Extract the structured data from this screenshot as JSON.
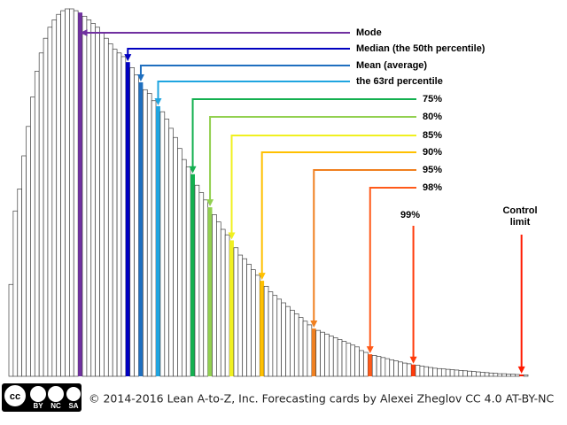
{
  "chart_data": {
    "type": "bar",
    "values": [
      25,
      45,
      51,
      60,
      68,
      76,
      83,
      88,
      92,
      95,
      97,
      98.5,
      99.5,
      100,
      100,
      99.5,
      99,
      98,
      97,
      96,
      95,
      93.5,
      92,
      90.5,
      89,
      88,
      87,
      85.5,
      84,
      82,
      80,
      78,
      77,
      75,
      73.5,
      72,
      70,
      67.5,
      65,
      62,
      59,
      57,
      55,
      52,
      50,
      48,
      46,
      44,
      42,
      40,
      38.5,
      37,
      35,
      33,
      32,
      30.5,
      29,
      27.5,
      26,
      24.5,
      23,
      22,
      21,
      20,
      19,
      18,
      17,
      16,
      15,
      14,
      13,
      12.5,
      12,
      11.5,
      11,
      10.5,
      10,
      9.5,
      9,
      8.5,
      8,
      7,
      6.5,
      6,
      5.7,
      5.4,
      5.1,
      4.8,
      4.5,
      4.2,
      3.9,
      3.6,
      3.4,
      3.2,
      3,
      2.8,
      2.6,
      2.4,
      2.2,
      2.1,
      2,
      1.9,
      1.8,
      1.7,
      1.6,
      1.5,
      1.4,
      1.3,
      1.2,
      1.1,
      1,
      0.9,
      0.8,
      0.7,
      0.7,
      0.6,
      0.6,
      0.5,
      0.5,
      0.4
    ],
    "ylim": [
      0,
      100
    ],
    "bar_fill": "#ffffff",
    "bar_edge": "#404040",
    "markers": [
      {
        "label": "Mode",
        "color": "#7030a0",
        "bar": 16
      },
      {
        "label": "Median (the 50th percentile)",
        "color": "#0000c0",
        "bar": 27
      },
      {
        "label": "Mean (average)",
        "color": "#1f6fbf",
        "bar": 30
      },
      {
        "label": "the 63rd percentile",
        "color": "#1fa5e0",
        "bar": 34
      },
      {
        "label": "75%",
        "color": "#13b050",
        "bar": 42
      },
      {
        "label": "80%",
        "color": "#92d050",
        "bar": 46
      },
      {
        "label": "85%",
        "color": "#f0f020",
        "bar": 51
      },
      {
        "label": "90%",
        "color": "#ffc000",
        "bar": 58
      },
      {
        "label": "95%",
        "color": "#f08020",
        "bar": 70
      },
      {
        "label": "98%",
        "color": "#ff5a1a",
        "bar": 83
      },
      {
        "label": "99%",
        "color": "#ff3a0a",
        "bar": 93
      },
      {
        "label": "Control limit",
        "color": "#ff1a00",
        "bar": 118
      }
    ]
  },
  "footer": {
    "badge": [
      "cc",
      "BY",
      "NC",
      "SA"
    ],
    "text": "© 2014-2016 Lean A-to-Z, Inc. Forecasting cards by Alexei Zheglov CC 4.0 AT-BY-NC"
  }
}
